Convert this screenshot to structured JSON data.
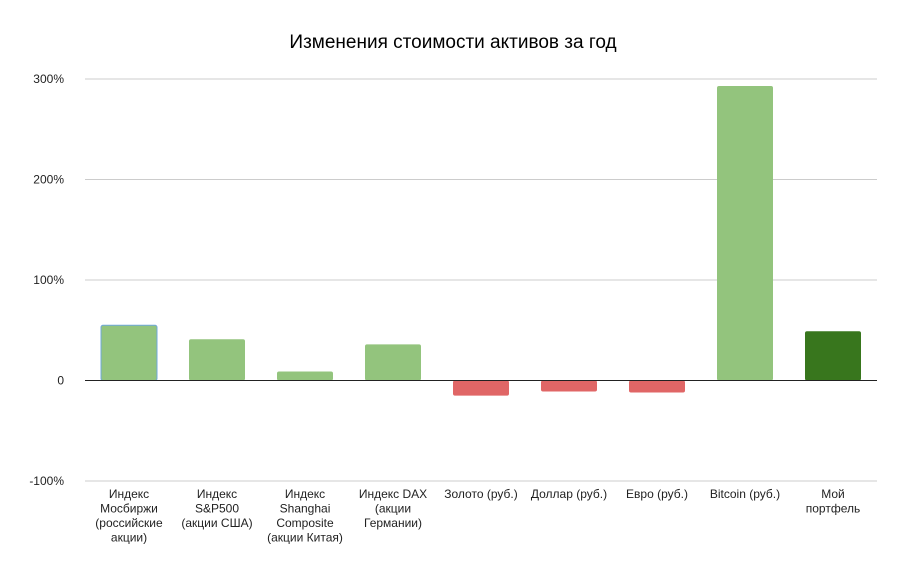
{
  "chart_data": {
    "type": "bar",
    "title": "Изменения стоимости активов за год",
    "xlabel": "",
    "ylabel": "",
    "ylim": [
      -100,
      300
    ],
    "yticks": [
      300,
      200,
      100,
      0,
      -100
    ],
    "ytick_labels": [
      "300%",
      "200%",
      "100%",
      "0",
      "-100%"
    ],
    "grid": true,
    "legend": "none",
    "categories": [
      [
        "Индекс",
        "Мосбиржи",
        "(российские",
        "акции)"
      ],
      [
        "Индекс",
        "S&P500",
        "(акции США)"
      ],
      [
        "Индекс",
        "Shanghai",
        "Composite",
        "(акции Китая)"
      ],
      [
        "Индекс DAX",
        "(акции",
        "Германии)"
      ],
      [
        "Золото (руб.)"
      ],
      [
        "Доллар (руб.)"
      ],
      [
        "Евро (руб.)"
      ],
      [
        "Bitcoin (руб.)"
      ],
      [
        "Мой",
        "портфель"
      ]
    ],
    "values": [
      55,
      41,
      9,
      36,
      -15,
      -11,
      -12,
      293,
      49
    ],
    "colors": [
      "#93c47d",
      "#93c47d",
      "#93c47d",
      "#93c47d",
      "#e06666",
      "#e06666",
      "#e06666",
      "#93c47d",
      "#38761d"
    ],
    "highlight_border": "#6fa8dc"
  }
}
